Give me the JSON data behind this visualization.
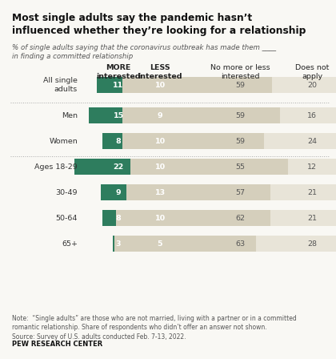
{
  "title": "Most single adults say the pandemic hasn’t\ninfluenced whether they’re looking for a relationship",
  "subtitle": "% of single adults saying that the coronavirus outbreak has made them ____\nin finding a committed relationship",
  "categories": [
    "All single\nadults",
    "Men",
    "Women",
    "Ages 18-29",
    "30-49",
    "50-64",
    "65+"
  ],
  "more_interested": [
    11,
    15,
    8,
    22,
    9,
    8,
    3
  ],
  "less_interested": [
    10,
    9,
    10,
    10,
    13,
    10,
    5
  ],
  "no_more_less": [
    59,
    59,
    59,
    55,
    57,
    62,
    63
  ],
  "does_not_apply": [
    20,
    16,
    24,
    12,
    21,
    21,
    28
  ],
  "color_more": "#2e7d5e",
  "color_less": "#c8960c",
  "color_no": "#d5cfbc",
  "color_dna": "#e8e4d8",
  "col_headers": [
    "MORE\ninterested",
    "LESS\ninterested",
    "No more or less\ninterested",
    "Does not\napply"
  ],
  "background_color": "#f9f8f4",
  "note": "Note:  “Single adults” are those who are not married, living with a partner or in a committed\nromantic relationship. Share of respondents who didn’t offer an answer not shown.\nSource: Survey of U.S. adults conducted Feb. 7-13, 2022.",
  "source_bold": "PEW RESEARCH CENTER",
  "separator_after": [
    0,
    2
  ],
  "bar_height": 0.62,
  "scale_per_unit": 0.0028
}
